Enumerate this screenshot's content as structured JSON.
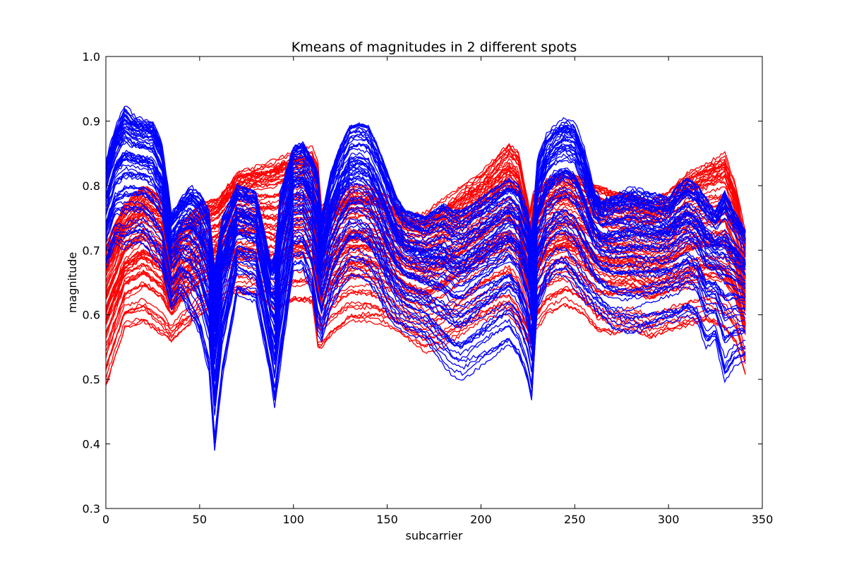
{
  "chart_data": {
    "type": "line",
    "title": "Kmeans of magnitudes in 2 different spots",
    "xlabel": "subcarrier",
    "ylabel": "magnitude",
    "xlim": [
      0,
      350
    ],
    "ylim": [
      0.3,
      1.0
    ],
    "xticks": [
      "0",
      "50",
      "100",
      "150",
      "200",
      "250",
      "300",
      "350"
    ],
    "yticks": [
      "0.3",
      "0.4",
      "0.5",
      "0.6",
      "0.7",
      "0.8",
      "0.9",
      "1.0"
    ],
    "grid": false,
    "legend": "none",
    "x_range_of_lines": [
      0,
      341
    ],
    "lines_per_cluster": 70,
    "series": [
      {
        "cluster": 0,
        "color": "#ff0000",
        "x": [
          0,
          10,
          20,
          30,
          35,
          40,
          50,
          60,
          70,
          80,
          90,
          100,
          110,
          113,
          115,
          120,
          130,
          140,
          150,
          160,
          170,
          180,
          190,
          200,
          210,
          215,
          220,
          226,
          228,
          235,
          245,
          255,
          262,
          270,
          280,
          290,
          300,
          310,
          320,
          330,
          336,
          341
        ],
        "upper": [
          0.71,
          0.77,
          0.8,
          0.78,
          0.7,
          0.74,
          0.77,
          0.78,
          0.82,
          0.83,
          0.84,
          0.855,
          0.86,
          0.84,
          0.77,
          0.78,
          0.8,
          0.8,
          0.79,
          0.76,
          0.76,
          0.78,
          0.8,
          0.82,
          0.85,
          0.865,
          0.85,
          0.76,
          0.79,
          0.81,
          0.82,
          0.81,
          0.8,
          0.79,
          0.785,
          0.775,
          0.79,
          0.82,
          0.835,
          0.85,
          0.8,
          0.73
        ],
        "lower": [
          0.49,
          0.58,
          0.59,
          0.57,
          0.56,
          0.575,
          0.6,
          0.62,
          0.63,
          0.625,
          0.6,
          0.62,
          0.62,
          0.55,
          0.55,
          0.57,
          0.59,
          0.59,
          0.58,
          0.56,
          0.54,
          0.55,
          0.57,
          0.59,
          0.6,
          0.6,
          0.58,
          0.55,
          0.57,
          0.6,
          0.615,
          0.6,
          0.575,
          0.57,
          0.58,
          0.565,
          0.575,
          0.58,
          0.585,
          0.57,
          0.55,
          0.5
        ]
      },
      {
        "cluster": 1,
        "color": "#0000ff",
        "x": [
          0,
          5,
          10,
          15,
          20,
          25,
          30,
          35,
          40,
          45,
          50,
          55,
          58,
          62,
          70,
          80,
          88,
          90,
          93,
          100,
          105,
          110,
          113,
          115,
          120,
          125,
          130,
          135,
          140,
          145,
          150,
          155,
          160,
          170,
          180,
          185,
          190,
          195,
          200,
          205,
          210,
          215,
          220,
          225,
          227,
          230,
          235,
          240,
          245,
          250,
          255,
          260,
          264,
          270,
          280,
          290,
          300,
          305,
          310,
          315,
          320,
          325,
          330,
          335,
          341
        ],
        "upper": [
          0.84,
          0.89,
          0.925,
          0.91,
          0.905,
          0.905,
          0.87,
          0.76,
          0.78,
          0.8,
          0.79,
          0.76,
          0.67,
          0.75,
          0.8,
          0.79,
          0.68,
          0.69,
          0.79,
          0.86,
          0.865,
          0.84,
          0.82,
          0.75,
          0.82,
          0.86,
          0.89,
          0.895,
          0.89,
          0.86,
          0.82,
          0.78,
          0.76,
          0.75,
          0.77,
          0.76,
          0.76,
          0.77,
          0.78,
          0.79,
          0.8,
          0.81,
          0.8,
          0.76,
          0.72,
          0.84,
          0.88,
          0.895,
          0.905,
          0.9,
          0.86,
          0.8,
          0.78,
          0.79,
          0.8,
          0.79,
          0.78,
          0.8,
          0.81,
          0.8,
          0.78,
          0.76,
          0.79,
          0.76,
          0.73
        ],
        "lower": [
          0.67,
          0.71,
          0.7,
          0.71,
          0.71,
          0.69,
          0.67,
          0.61,
          0.63,
          0.6,
          0.57,
          0.51,
          0.39,
          0.5,
          0.63,
          0.62,
          0.5,
          0.455,
          0.52,
          0.67,
          0.67,
          0.63,
          0.57,
          0.56,
          0.61,
          0.64,
          0.66,
          0.66,
          0.65,
          0.63,
          0.6,
          0.58,
          0.57,
          0.56,
          0.52,
          0.505,
          0.5,
          0.51,
          0.52,
          0.53,
          0.54,
          0.55,
          0.53,
          0.49,
          0.46,
          0.6,
          0.64,
          0.66,
          0.66,
          0.64,
          0.62,
          0.61,
          0.6,
          0.58,
          0.57,
          0.58,
          0.59,
          0.59,
          0.6,
          0.59,
          0.55,
          0.56,
          0.495,
          0.52,
          0.53
        ]
      }
    ]
  }
}
